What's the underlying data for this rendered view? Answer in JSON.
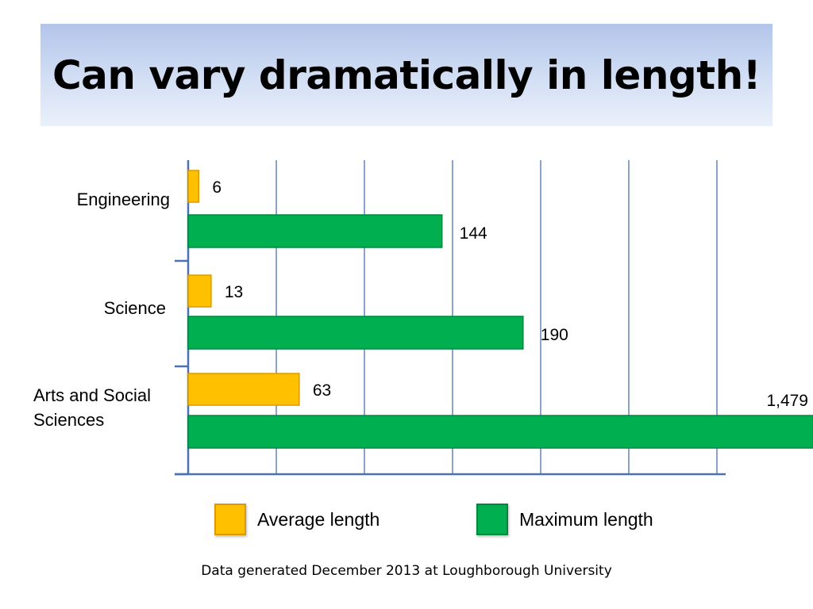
{
  "slide": {
    "title": "Can vary dramatically in length!",
    "footnote": "Data generated December 2013 at Loughborough University"
  },
  "colors": {
    "average": "#ffc000",
    "average_border": "#d89a00",
    "maximum": "#00b050",
    "maximum_border": "#00873c",
    "axis": "#4a72b0",
    "grid": "#4a72b0"
  },
  "legend": [
    {
      "name": "Average length",
      "color": "#ffc000",
      "icon": "orange-square-swatch"
    },
    {
      "name": "Maximum length",
      "color": "#00b050",
      "icon": "green-square-swatch"
    }
  ],
  "chart_data": {
    "type": "bar",
    "orientation": "horizontal",
    "title": "",
    "xlabel": "",
    "ylabel": "",
    "grid": true,
    "legend_position": "bottom",
    "categories": [
      "Engineering",
      "Science",
      "Arts and Social Sciences"
    ],
    "category_labels": [
      [
        "Engineering"
      ],
      [
        "Science"
      ],
      [
        "Arts and Social",
        "Sciences"
      ]
    ],
    "series": [
      {
        "name": "Average length",
        "values": [
          6,
          13,
          63
        ],
        "labels": [
          "6",
          "13",
          "63"
        ]
      },
      {
        "name": "Maximum length",
        "values": [
          144,
          190,
          1479
        ],
        "labels": [
          "144",
          "190",
          "1,479"
        ]
      }
    ],
    "xlim": [
      0,
      300
    ],
    "x_break": "Maximum bar for Arts and Social Sciences extends past the plotted range"
  }
}
